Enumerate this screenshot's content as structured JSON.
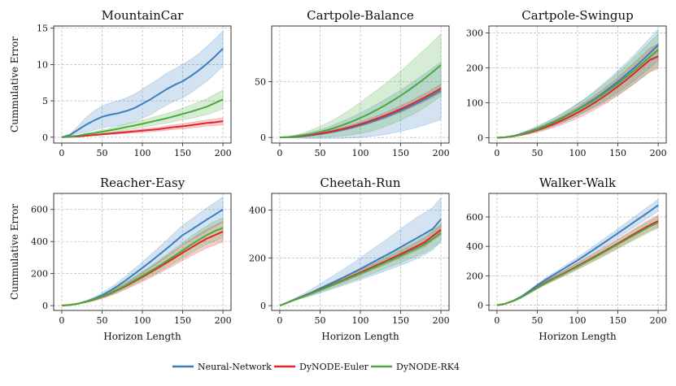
{
  "colors": {
    "Neural-Network": "#3b7ec0",
    "DyNODE-Euler": "#e0242a",
    "DyNODE-RK4": "#4aa93a"
  },
  "chart_data": [
    {
      "type": "line",
      "title": "MountainCar",
      "xlabel": "",
      "ylabel": "Cummulative Error",
      "xlim": [
        -10,
        210
      ],
      "ylim": [
        -0.8,
        15.3
      ],
      "xticks": [
        0,
        50,
        100,
        150,
        200
      ],
      "yticks": [
        0,
        5,
        10,
        15
      ],
      "x": [
        0,
        10,
        20,
        30,
        40,
        50,
        60,
        70,
        80,
        90,
        100,
        110,
        120,
        130,
        140,
        150,
        160,
        170,
        180,
        190,
        200
      ],
      "series": [
        {
          "name": "Neural-Network",
          "values": [
            0,
            0.3,
            1.0,
            1.7,
            2.3,
            2.8,
            3.1,
            3.3,
            3.6,
            4.0,
            4.6,
            5.2,
            5.9,
            6.6,
            7.2,
            7.7,
            8.4,
            9.2,
            10.1,
            11.1,
            12.2
          ],
          "band": [
            0,
            0.1,
            0.5,
            1.0,
            1.3,
            1.5,
            1.6,
            1.7,
            1.8,
            1.9,
            2.0,
            2.1,
            2.1,
            2.2,
            2.2,
            2.3,
            2.3,
            2.3,
            2.4,
            2.4,
            2.4
          ]
        },
        {
          "name": "DyNODE-Euler",
          "values": [
            0,
            0.05,
            0.1,
            0.2,
            0.3,
            0.4,
            0.5,
            0.6,
            0.7,
            0.8,
            0.9,
            1.0,
            1.1,
            1.25,
            1.4,
            1.5,
            1.65,
            1.8,
            1.95,
            2.05,
            2.2
          ],
          "band": [
            0,
            0.02,
            0.03,
            0.05,
            0.07,
            0.1,
            0.12,
            0.15,
            0.17,
            0.2,
            0.22,
            0.25,
            0.27,
            0.3,
            0.32,
            0.35,
            0.37,
            0.4,
            0.42,
            0.45,
            0.5
          ]
        },
        {
          "name": "DyNODE-RK4",
          "values": [
            0,
            0.1,
            0.2,
            0.4,
            0.55,
            0.75,
            0.95,
            1.15,
            1.4,
            1.6,
            1.85,
            2.1,
            2.35,
            2.6,
            2.9,
            3.2,
            3.5,
            3.85,
            4.2,
            4.7,
            5.2
          ],
          "band": [
            0,
            0.05,
            0.1,
            0.15,
            0.2,
            0.25,
            0.3,
            0.35,
            0.4,
            0.45,
            0.5,
            0.55,
            0.6,
            0.65,
            0.7,
            0.8,
            0.9,
            1.0,
            1.1,
            1.2,
            1.3
          ]
        }
      ]
    },
    {
      "type": "line",
      "title": "Cartpole-Balance",
      "xlabel": "",
      "ylabel": "",
      "xlim": [
        -10,
        210
      ],
      "ylim": [
        -5,
        100
      ],
      "xticks": [
        0,
        50,
        100,
        150,
        200
      ],
      "yticks": [
        0,
        50
      ],
      "x": [
        0,
        10,
        20,
        30,
        40,
        50,
        60,
        70,
        80,
        90,
        100,
        110,
        120,
        130,
        140,
        150,
        160,
        170,
        180,
        190,
        200
      ],
      "series": [
        {
          "name": "Neural-Network",
          "values": [
            0,
            0.2,
            0.6,
            1.2,
            2.0,
            3.0,
            4.2,
            5.6,
            7.2,
            9.0,
            11.0,
            13.2,
            15.6,
            18.2,
            21.0,
            24.0,
            27.2,
            30.6,
            34.2,
            38.0,
            42.0
          ],
          "band": [
            0,
            0.5,
            1.2,
            2,
            3,
            4,
            5,
            6.5,
            8,
            9.5,
            11,
            12.5,
            14,
            15.5,
            17,
            18.5,
            20,
            21.5,
            23,
            24.5,
            26
          ]
        },
        {
          "name": "DyNODE-Euler",
          "values": [
            0,
            0.3,
            0.8,
            1.5,
            2.4,
            3.5,
            4.8,
            6.3,
            8.0,
            9.9,
            12.0,
            14.3,
            16.8,
            19.5,
            22.4,
            25.5,
            28.8,
            32.3,
            36.0,
            39.9,
            44.0
          ],
          "band": [
            0,
            0.2,
            0.4,
            0.6,
            0.8,
            1,
            1.2,
            1.4,
            1.6,
            1.8,
            2,
            2.2,
            2.4,
            2.6,
            2.8,
            3,
            3.2,
            3.4,
            3.6,
            3.8,
            4
          ]
        },
        {
          "name": "DyNODE-RK4",
          "values": [
            0,
            0.4,
            1.1,
            2.1,
            3.4,
            5.0,
            6.9,
            9.1,
            11.6,
            14.4,
            17.5,
            20.9,
            24.6,
            28.6,
            32.9,
            37.5,
            42.4,
            47.6,
            53.1,
            58.9,
            65.0
          ],
          "band": [
            0,
            0.5,
            1.2,
            2.2,
            3.5,
            5,
            6.5,
            8,
            10,
            12,
            14,
            16,
            17.5,
            19,
            20.5,
            22,
            23.5,
            25,
            26,
            27,
            28
          ]
        }
      ]
    },
    {
      "type": "line",
      "title": "Cartpole-Swingup",
      "xlabel": "",
      "ylabel": "",
      "xlim": [
        -10,
        210
      ],
      "ylim": [
        -15,
        320
      ],
      "xticks": [
        0,
        50,
        100,
        150,
        200
      ],
      "yticks": [
        0,
        100,
        200,
        300
      ],
      "x": [
        0,
        10,
        20,
        30,
        40,
        50,
        60,
        70,
        80,
        90,
        100,
        110,
        120,
        130,
        140,
        150,
        160,
        170,
        180,
        190,
        200
      ],
      "series": [
        {
          "name": "Neural-Network",
          "values": [
            0,
            1.5,
            5,
            11,
            18,
            26,
            35,
            45,
            56,
            68,
            81,
            95,
            110,
            126,
            143,
            161,
            180,
            200,
            221,
            243,
            266
          ],
          "band": [
            0,
            0.5,
            1.5,
            3,
            5,
            7,
            9,
            11,
            13,
            15,
            17,
            19,
            22,
            25,
            28,
            31,
            34,
            37,
            40,
            43,
            45
          ]
        },
        {
          "name": "DyNODE-Euler",
          "values": [
            0,
            1.2,
            4,
            9,
            15,
            22,
            30,
            39,
            49,
            60,
            72,
            85,
            99,
            114,
            130,
            147,
            165,
            184,
            204,
            223,
            233
          ],
          "band": [
            0,
            0.5,
            1.5,
            3,
            4.5,
            6,
            8,
            10,
            12,
            14,
            16,
            18,
            20,
            22,
            24,
            26,
            28,
            30,
            32,
            34,
            36
          ]
        },
        {
          "name": "DyNODE-RK4",
          "values": [
            0,
            1.4,
            4.6,
            10,
            17,
            25,
            34,
            44,
            55,
            67,
            80,
            93,
            107,
            122,
            138,
            155,
            173,
            192,
            212,
            232,
            252
          ],
          "band": [
            0,
            0.5,
            1.5,
            3,
            5,
            7,
            9,
            11,
            13,
            15,
            17,
            19,
            22,
            25,
            28,
            31,
            34,
            37,
            40,
            43,
            45
          ]
        }
      ]
    },
    {
      "type": "line",
      "title": "Reacher-Easy",
      "xlabel": "Horizon Length",
      "ylabel": "Cummulative Error",
      "xlim": [
        -10,
        210
      ],
      "ylim": [
        -30,
        700
      ],
      "xticks": [
        0,
        50,
        100,
        150,
        200
      ],
      "yticks": [
        0,
        200,
        400,
        600
      ],
      "x": [
        0,
        10,
        20,
        30,
        40,
        50,
        60,
        70,
        80,
        90,
        100,
        110,
        120,
        130,
        140,
        150,
        160,
        170,
        180,
        190,
        200
      ],
      "series": [
        {
          "name": "Neural-Network",
          "values": [
            0,
            4,
            12,
            25,
            43,
            65,
            93,
            125,
            160,
            197,
            235,
            274,
            314,
            355,
            397,
            440,
            471,
            504,
            537,
            568,
            600
          ],
          "band": [
            0,
            1,
            3,
            6,
            10,
            14,
            18,
            22,
            27,
            32,
            37,
            42,
            47,
            52,
            57,
            61,
            65,
            69,
            72,
            75,
            78
          ]
        },
        {
          "name": "DyNODE-Euler",
          "values": [
            0,
            4,
            12,
            24,
            38,
            55,
            75,
            98,
            123,
            150,
            178,
            207,
            237,
            267,
            298,
            330,
            360,
            390,
            418,
            440,
            462
          ],
          "band": [
            0,
            1,
            3,
            5,
            8,
            11,
            14,
            17,
            20,
            24,
            28,
            32,
            36,
            40,
            44,
            48,
            52,
            55,
            58,
            61,
            63
          ]
        },
        {
          "name": "DyNODE-RK4",
          "values": [
            0,
            4,
            12,
            24,
            39,
            57,
            78,
            102,
            128,
            156,
            185,
            215,
            246,
            278,
            311,
            345,
            378,
            410,
            440,
            465,
            485
          ],
          "band": [
            0,
            1,
            3,
            5,
            8,
            11,
            14,
            17,
            20,
            24,
            28,
            32,
            36,
            40,
            44,
            48,
            52,
            55,
            58,
            61,
            63
          ]
        }
      ]
    },
    {
      "type": "line",
      "title": "Cheetah-Run",
      "xlabel": "Horizon Length",
      "ylabel": "",
      "xlim": [
        -10,
        210
      ],
      "ylim": [
        -20,
        470
      ],
      "xticks": [
        0,
        50,
        100,
        150,
        200
      ],
      "yticks": [
        0,
        200,
        400
      ],
      "x": [
        0,
        10,
        20,
        30,
        40,
        50,
        60,
        70,
        80,
        90,
        100,
        110,
        120,
        130,
        140,
        150,
        160,
        170,
        180,
        190,
        200
      ],
      "series": [
        {
          "name": "Neural-Network",
          "values": [
            0,
            14,
            28,
            42,
            56,
            72,
            88,
            104,
            120,
            137,
            154,
            172,
            190,
            208,
            226,
            245,
            264,
            283,
            302,
            322,
            362
          ],
          "band": [
            0,
            2,
            5,
            9,
            14,
            19,
            24,
            29,
            34,
            40,
            46,
            52,
            58,
            64,
            70,
            76,
            82,
            86,
            88,
            89,
            90
          ]
        },
        {
          "name": "DyNODE-Euler",
          "values": [
            0,
            13,
            27,
            40,
            53,
            67,
            81,
            95,
            109,
            124,
            139,
            154,
            169,
            184,
            200,
            216,
            232,
            249,
            266,
            292,
            318
          ],
          "band": [
            0,
            1,
            2,
            3,
            4,
            5,
            6,
            7,
            8,
            9,
            10,
            11,
            12,
            13,
            14,
            15,
            16,
            17,
            18,
            19,
            20
          ]
        },
        {
          "name": "DyNODE-RK4",
          "values": [
            0,
            13,
            26,
            39,
            52,
            65,
            79,
            93,
            107,
            121,
            135,
            149,
            164,
            179,
            194,
            209,
            225,
            241,
            257,
            280,
            305
          ],
          "band": [
            0,
            1.5,
            3,
            5,
            7,
            9,
            11,
            13,
            15,
            17,
            19,
            21,
            23,
            25,
            27,
            29,
            31,
            33,
            35,
            37,
            40
          ]
        }
      ]
    },
    {
      "type": "line",
      "title": "Walker-Walk",
      "xlabel": "Horizon Length",
      "ylabel": "",
      "xlim": [
        -10,
        210
      ],
      "ylim": [
        -35,
        760
      ],
      "xticks": [
        0,
        50,
        100,
        150,
        200
      ],
      "yticks": [
        0,
        200,
        400,
        600
      ],
      "x": [
        0,
        10,
        20,
        30,
        40,
        50,
        60,
        70,
        80,
        90,
        100,
        110,
        120,
        130,
        140,
        150,
        160,
        170,
        180,
        190,
        200
      ],
      "series": [
        {
          "name": "Neural-Network",
          "values": [
            0,
            10,
            30,
            58,
            95,
            135,
            172,
            205,
            238,
            272,
            305,
            341,
            378,
            415,
            452,
            490,
            527,
            565,
            603,
            641,
            680
          ],
          "band": [
            0,
            2,
            4,
            6,
            8,
            10,
            12,
            14,
            16,
            18,
            20,
            22,
            24,
            26,
            28,
            30,
            32,
            34,
            36,
            38,
            40
          ]
        },
        {
          "name": "DyNODE-Euler",
          "values": [
            0,
            10,
            29,
            55,
            88,
            122,
            153,
            181,
            209,
            238,
            267,
            297,
            327,
            358,
            389,
            420,
            452,
            484,
            516,
            546,
            572
          ],
          "band": [
            0,
            2,
            4,
            6,
            8,
            10,
            12,
            14,
            16,
            18,
            20,
            22,
            24,
            26,
            28,
            30,
            32,
            34,
            36,
            38,
            40
          ]
        },
        {
          "name": "DyNODE-RK4",
          "values": [
            0,
            10,
            28,
            54,
            86,
            119,
            150,
            178,
            206,
            234,
            262,
            292,
            322,
            352,
            383,
            414,
            445,
            476,
            507,
            537,
            562
          ],
          "band": [
            0,
            2,
            4,
            6,
            8,
            10,
            12,
            14,
            16,
            18,
            20,
            22,
            24,
            26,
            28,
            30,
            32,
            34,
            36,
            38,
            40
          ]
        }
      ]
    }
  ],
  "legend": {
    "items": [
      "Neural-Network",
      "DyNODE-Euler",
      "DyNODE-RK4"
    ],
    "placement": "bottom-center"
  }
}
